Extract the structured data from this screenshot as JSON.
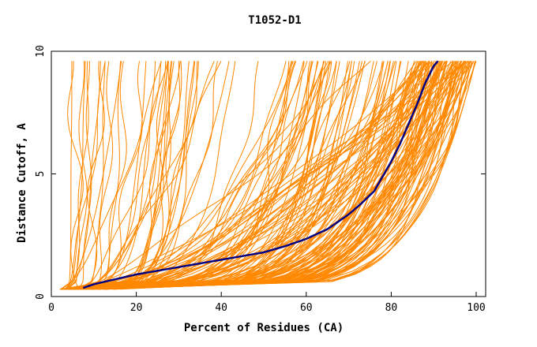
{
  "chart_data": {
    "type": "line",
    "title": "T1052-D1",
    "xlabel": "Percent of Residues (CA)",
    "ylabel": "Distance Cutoff, A",
    "xlim": [
      0,
      100
    ],
    "ylim": [
      0,
      10
    ],
    "xticks": [
      0,
      20,
      40,
      60,
      80,
      100
    ],
    "yticks": [
      0,
      5,
      10
    ],
    "grid": false,
    "colors": {
      "models": "#ff8800",
      "highlight": "#000080",
      "axes": "#000000"
    },
    "highlight_series": {
      "x": [
        7.5,
        10,
        15,
        20,
        25,
        30,
        35,
        40,
        45,
        50,
        55,
        60,
        65,
        70,
        73,
        76,
        78,
        80,
        82,
        84,
        86,
        88,
        90,
        91
      ],
      "y": [
        0.35,
        0.5,
        0.7,
        0.9,
        1.05,
        1.2,
        1.35,
        1.5,
        1.65,
        1.8,
        2.05,
        2.35,
        2.75,
        3.35,
        3.8,
        4.3,
        4.9,
        5.5,
        6.2,
        7.0,
        7.8,
        8.7,
        9.4,
        9.6
      ]
    },
    "model_series_count": 150,
    "model_band": {
      "start_x_range": [
        2,
        17
      ],
      "end_x_range": [
        3,
        100
      ],
      "y_min": 0.3,
      "y_max": 9.6
    }
  }
}
